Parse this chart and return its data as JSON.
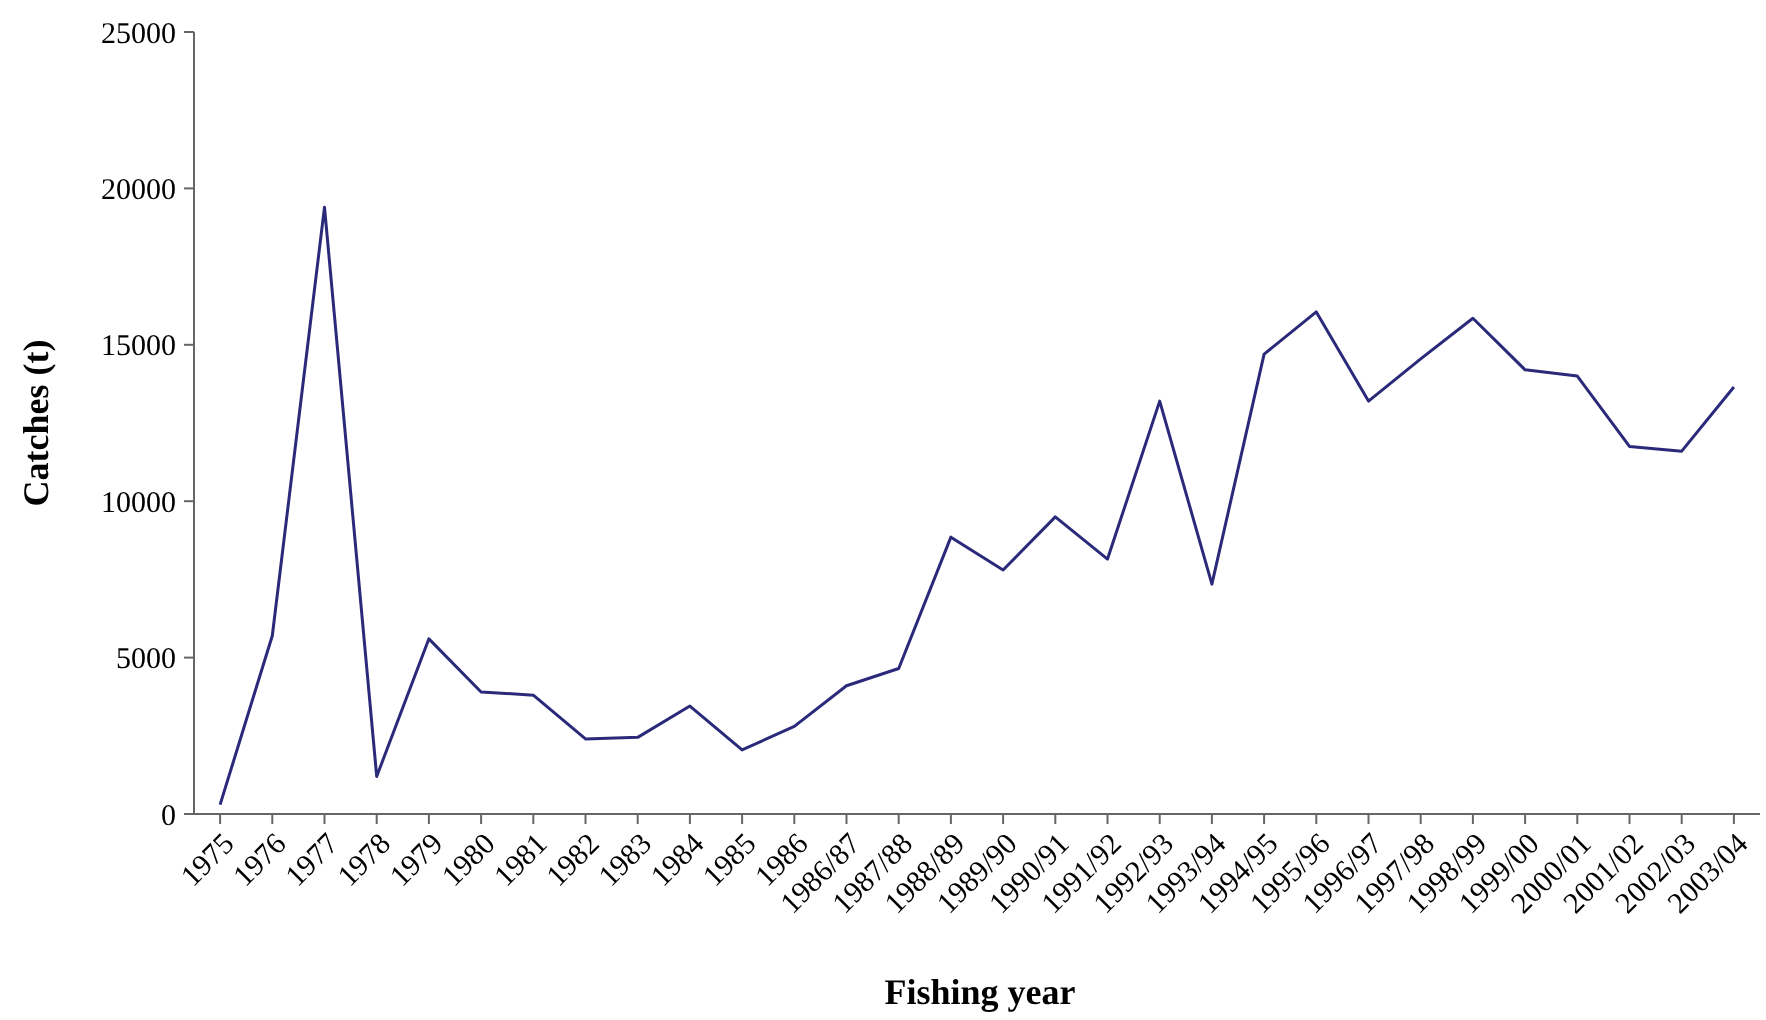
{
  "chart_data": {
    "type": "line",
    "xlabel": "Fishing year",
    "ylabel": "Catches (t)",
    "categories": [
      "1975",
      "1976",
      "1977",
      "1978",
      "1979",
      "1980",
      "1981",
      "1982",
      "1983",
      "1984",
      "1985",
      "1986",
      "1986/87",
      "1987/88",
      "1988/89",
      "1989/90",
      "1990/91",
      "1991/92",
      "1992/93",
      "1993/94",
      "1994/95",
      "1995/96",
      "1996/97",
      "1997/98",
      "1998/99",
      "1999/00",
      "2000/01",
      "2001/02",
      "2002/03",
      "2003/04"
    ],
    "series": [
      {
        "color": "#2b2a7a",
        "values": [
          300,
          5700,
          19400,
          1200,
          5600,
          3900,
          3800,
          2400,
          2450,
          3450,
          2050,
          2800,
          4100,
          4650,
          8850,
          7800,
          9500,
          8150,
          13200,
          7350,
          14700,
          16050,
          13200,
          14550,
          15850,
          14200,
          14000,
          11750,
          11600,
          13650
        ]
      }
    ],
    "ylim": [
      0,
      25000
    ],
    "yticks": [
      0,
      5000,
      10000,
      15000,
      20000,
      25000
    ],
    "grid": false,
    "marker": "none",
    "line_style": "solid"
  }
}
